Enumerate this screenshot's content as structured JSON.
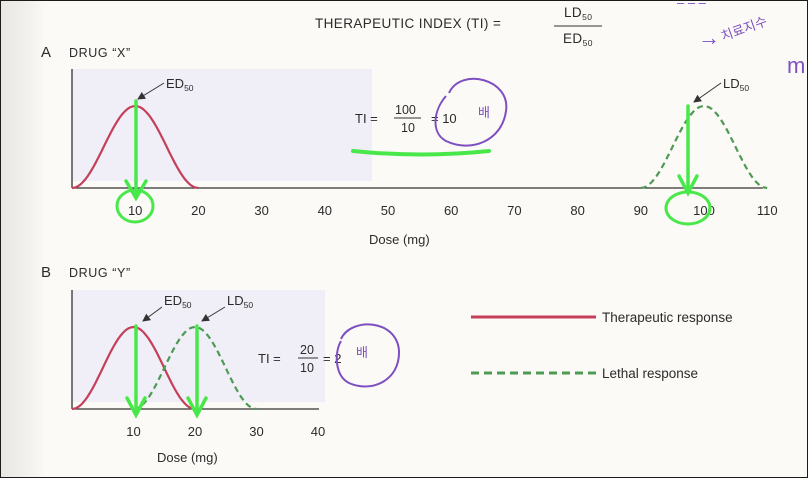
{
  "header": {
    "formula_lhs": "THERAPEUTIC INDEX (TI) =",
    "formula_num_base": "LD",
    "formula_num_sub": "50",
    "formula_den_base": "ED",
    "formula_den_sub": "50"
  },
  "margin_notes": {
    "top_right": "치료지수",
    "top_right_bullet": "→",
    "m_mark": "m",
    "unit_a": "배",
    "unit_b": "배"
  },
  "legend": {
    "therapeutic": "Therapeutic response",
    "lethal": "Lethal response"
  },
  "colors": {
    "therapeutic": "#c4405a",
    "lethal": "#4d9a55",
    "annotation_green": "#49e84a",
    "annotation_purple": "#7d4fc0"
  },
  "chart_data": [
    {
      "type": "line",
      "panel_letter": "A",
      "title": "DRUG “X”",
      "xlabel": "Dose (mg)",
      "ylabel": "",
      "x_ticks": [
        10,
        20,
        30,
        40,
        50,
        60,
        70,
        80,
        90,
        100,
        110
      ],
      "x_tick_labels": [
        "10",
        "20",
        "30",
        "40",
        "50",
        "60",
        "70",
        "80",
        "90",
        "100",
        "110"
      ],
      "xlim": [
        0,
        115
      ],
      "series": [
        {
          "name": "Therapeutic response",
          "style": "solid",
          "center": 10,
          "halfwidth": 10,
          "peak": 1
        },
        {
          "name": "Lethal response",
          "style": "dashed",
          "center": 100,
          "halfwidth": 10,
          "peak": 1
        }
      ],
      "annotations": [
        {
          "label_base": "ED",
          "label_sub": "50",
          "x": 10
        },
        {
          "label_base": "LD",
          "label_sub": "50",
          "x": 100
        }
      ],
      "ti": {
        "prefix": "TI =",
        "numerator": "100",
        "denominator": "10",
        "result": "= 10"
      },
      "grid": false,
      "legend_position": "none"
    },
    {
      "type": "line",
      "panel_letter": "B",
      "title": "DRUG “Y”",
      "xlabel": "Dose (mg)",
      "ylabel": "",
      "x_ticks": [
        10,
        20,
        30,
        40
      ],
      "x_tick_labels": [
        "10",
        "20",
        "30",
        "40"
      ],
      "xlim": [
        0,
        40
      ],
      "series": [
        {
          "name": "Therapeutic response",
          "style": "solid",
          "center": 10,
          "halfwidth": 10,
          "peak": 1
        },
        {
          "name": "Lethal response",
          "style": "dashed",
          "center": 20,
          "halfwidth": 10,
          "peak": 1
        }
      ],
      "annotations": [
        {
          "label_base": "ED",
          "label_sub": "50",
          "x": 10
        },
        {
          "label_base": "LD",
          "label_sub": "50",
          "x": 20
        }
      ],
      "ti": {
        "prefix": "TI =",
        "numerator": "20",
        "denominator": "10",
        "result": "= 2"
      },
      "grid": false,
      "legend_position": "right"
    }
  ]
}
